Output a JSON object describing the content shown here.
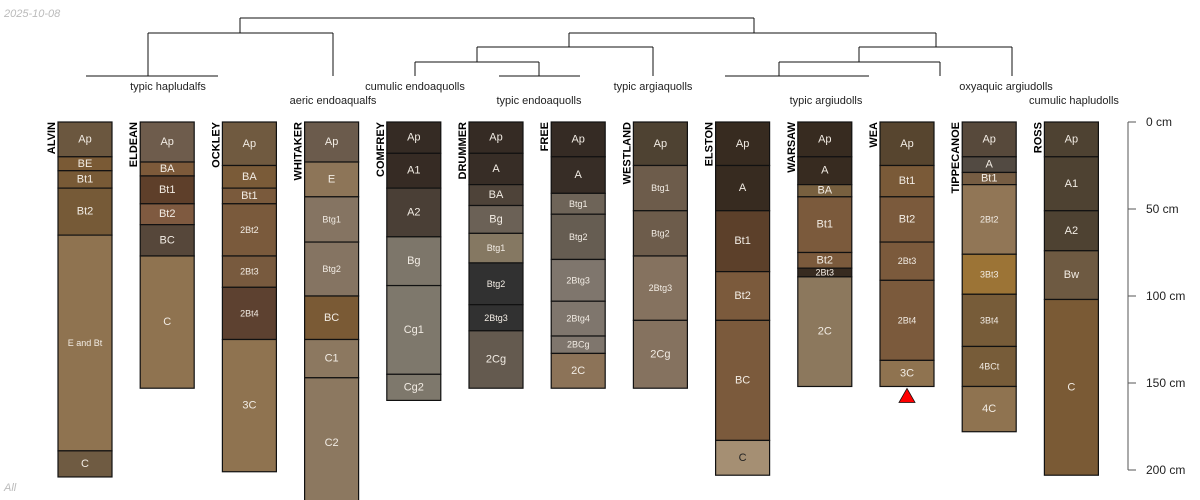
{
  "date": "2025-10-08",
  "footer": "All",
  "depth_axis": {
    "unit": "cm",
    "ticks": [
      0,
      50,
      100,
      150,
      200
    ],
    "tick_labels": [
      "0 cm",
      "50 cm",
      "100 cm",
      "150 cm",
      "200 cm"
    ]
  },
  "classifications": [
    "typic hapludalfs",
    "aeric endoaqualfs",
    "cumulic endoaquolls",
    "typic endoaquolls",
    "typic argiaquolls",
    "typic argiudolls",
    "oxyaquic argiudolls",
    "cumulic hapludolls"
  ],
  "marker": {
    "profile": "WEA",
    "symbol": "red-triangle",
    "color": "#ff0000"
  },
  "profiles": [
    {
      "name": "ALVIN",
      "horizons": [
        {
          "name": "Ap",
          "top": 0,
          "bottom": 20,
          "color": "#6b573f"
        },
        {
          "name": "BE",
          "top": 20,
          "bottom": 28,
          "color": "#7a5a35"
        },
        {
          "name": "Bt1",
          "top": 28,
          "bottom": 38,
          "color": "#785a36"
        },
        {
          "name": "Bt2",
          "top": 38,
          "bottom": 65,
          "color": "#765a37"
        },
        {
          "name": "E and Bt",
          "top": 65,
          "bottom": 189,
          "color": "#8f7350"
        },
        {
          "name": "C",
          "top": 189,
          "bottom": 204,
          "color": "#6f5b42"
        }
      ]
    },
    {
      "name": "ELDEAN",
      "horizons": [
        {
          "name": "Ap",
          "top": 0,
          "bottom": 23,
          "color": "#6e5c4c"
        },
        {
          "name": "BA",
          "top": 23,
          "bottom": 31,
          "color": "#7d5a3a"
        },
        {
          "name": "Bt1",
          "top": 31,
          "bottom": 47,
          "color": "#5e3f2a"
        },
        {
          "name": "Bt2",
          "top": 47,
          "bottom": 59,
          "color": "#7f5a40"
        },
        {
          "name": "BC",
          "top": 59,
          "bottom": 77,
          "color": "#56473a"
        },
        {
          "name": "C",
          "top": 77,
          "bottom": 153,
          "color": "#8f7350"
        }
      ]
    },
    {
      "name": "OCKLEY",
      "horizons": [
        {
          "name": "Ap",
          "top": 0,
          "bottom": 25,
          "color": "#705a40"
        },
        {
          "name": "BA",
          "top": 25,
          "bottom": 38,
          "color": "#7a5b38"
        },
        {
          "name": "Bt1",
          "top": 38,
          "bottom": 47,
          "color": "#7a5a3c"
        },
        {
          "name": "2Bt2",
          "top": 47,
          "bottom": 77,
          "color": "#7a5a3c"
        },
        {
          "name": "2Bt3",
          "top": 77,
          "bottom": 95,
          "color": "#785a3e"
        },
        {
          "name": "2Bt4",
          "top": 95,
          "bottom": 125,
          "color": "#5d4130"
        },
        {
          "name": "3C",
          "top": 125,
          "bottom": 201,
          "color": "#8f7350"
        }
      ]
    },
    {
      "name": "WHITAKER",
      "horizons": [
        {
          "name": "Ap",
          "top": 0,
          "bottom": 23,
          "color": "#6b5b4c"
        },
        {
          "name": "E",
          "top": 23,
          "bottom": 43,
          "color": "#8d7558"
        },
        {
          "name": "Btg1",
          "top": 43,
          "bottom": 69,
          "color": "#857462"
        },
        {
          "name": "Btg2",
          "top": 69,
          "bottom": 100,
          "color": "#857462"
        },
        {
          "name": "BC",
          "top": 100,
          "bottom": 125,
          "color": "#7a5a35"
        },
        {
          "name": "C1",
          "top": 125,
          "bottom": 147,
          "color": "#8c7860"
        },
        {
          "name": "C2",
          "top": 147,
          "bottom": 222,
          "color": "#8c7860"
        }
      ]
    },
    {
      "name": "COMFREY",
      "horizons": [
        {
          "name": "Ap",
          "top": 0,
          "bottom": 18,
          "color": "#352b24"
        },
        {
          "name": "A1",
          "top": 18,
          "bottom": 38,
          "color": "#362b24"
        },
        {
          "name": "A2",
          "top": 38,
          "bottom": 66,
          "color": "#4a3f36"
        },
        {
          "name": "Bg",
          "top": 66,
          "bottom": 94,
          "color": "#7d766a"
        },
        {
          "name": "Cg1",
          "top": 94,
          "bottom": 145,
          "color": "#7e786c"
        },
        {
          "name": "Cg2",
          "top": 145,
          "bottom": 160,
          "color": "#7e786c"
        }
      ]
    },
    {
      "name": "DRUMMER",
      "horizons": [
        {
          "name": "Ap",
          "top": 0,
          "bottom": 18,
          "color": "#352b24"
        },
        {
          "name": "A",
          "top": 18,
          "bottom": 36,
          "color": "#372d26"
        },
        {
          "name": "BA",
          "top": 36,
          "bottom": 48,
          "color": "#4e4339"
        },
        {
          "name": "Bg",
          "top": 48,
          "bottom": 64,
          "color": "#6b6156"
        },
        {
          "name": "Btg1",
          "top": 64,
          "bottom": 81,
          "color": "#857862"
        },
        {
          "name": "Btg2",
          "top": 81,
          "bottom": 105,
          "color": "#313131"
        },
        {
          "name": "2Btg3",
          "top": 105,
          "bottom": 120,
          "color": "#313131"
        },
        {
          "name": "2Cg",
          "top": 120,
          "bottom": 153,
          "color": "#645a4f"
        }
      ]
    },
    {
      "name": "FREE",
      "horizons": [
        {
          "name": "Ap",
          "top": 0,
          "bottom": 20,
          "color": "#352b24"
        },
        {
          "name": "A",
          "top": 20,
          "bottom": 41,
          "color": "#372d26"
        },
        {
          "name": "Btg1",
          "top": 41,
          "bottom": 53,
          "color": "#6e6458"
        },
        {
          "name": "Btg2",
          "top": 53,
          "bottom": 79,
          "color": "#665d52"
        },
        {
          "name": "2Btg3",
          "top": 79,
          "bottom": 103,
          "color": "#7f766d"
        },
        {
          "name": "2Btg4",
          "top": 103,
          "bottom": 123,
          "color": "#7f766d"
        },
        {
          "name": "2BCg",
          "top": 123,
          "bottom": 133,
          "color": "#7f766d"
        },
        {
          "name": "2C",
          "top": 133,
          "bottom": 153,
          "color": "#8c7358"
        }
      ]
    },
    {
      "name": "WESTLAND",
      "horizons": [
        {
          "name": "Ap",
          "top": 0,
          "bottom": 25,
          "color": "#4e4232"
        },
        {
          "name": "Btg1",
          "top": 25,
          "bottom": 51,
          "color": "#6d5c4b"
        },
        {
          "name": "Btg2",
          "top": 51,
          "bottom": 77,
          "color": "#6d5c4b"
        },
        {
          "name": "2Btg3",
          "top": 77,
          "bottom": 114,
          "color": "#85725f"
        },
        {
          "name": "2Cg",
          "top": 114,
          "bottom": 153,
          "color": "#85725f"
        }
      ]
    },
    {
      "name": "ELSTON",
      "horizons": [
        {
          "name": "Ap",
          "top": 0,
          "bottom": 25,
          "color": "#372b20"
        },
        {
          "name": "A",
          "top": 25,
          "bottom": 51,
          "color": "#372b20"
        },
        {
          "name": "Bt1",
          "top": 51,
          "bottom": 86,
          "color": "#5c402a"
        },
        {
          "name": "Bt2",
          "top": 86,
          "bottom": 114,
          "color": "#7b5a3c"
        },
        {
          "name": "BC",
          "top": 114,
          "bottom": 183,
          "color": "#7b5a3c"
        },
        {
          "name": "C",
          "top": 183,
          "bottom": 203,
          "color": "#a58f73",
          "text": "#222222"
        }
      ]
    },
    {
      "name": "WARSAW",
      "horizons": [
        {
          "name": "Ap",
          "top": 0,
          "bottom": 20,
          "color": "#372b20"
        },
        {
          "name": "A",
          "top": 20,
          "bottom": 36,
          "color": "#372b20"
        },
        {
          "name": "BA",
          "top": 36,
          "bottom": 43,
          "color": "#78603f"
        },
        {
          "name": "Bt1",
          "top": 43,
          "bottom": 75,
          "color": "#7b5a3c"
        },
        {
          "name": "Bt2",
          "top": 75,
          "bottom": 84,
          "color": "#7b5a3c"
        },
        {
          "name": "2Bt3",
          "top": 84,
          "bottom": 89,
          "color": "#372b20"
        },
        {
          "name": "2C",
          "top": 89,
          "bottom": 152,
          "color": "#8c785d"
        }
      ]
    },
    {
      "name": "WEA",
      "horizons": [
        {
          "name": "Ap",
          "top": 0,
          "bottom": 25,
          "color": "#57452f"
        },
        {
          "name": "Bt1",
          "top": 25,
          "bottom": 43,
          "color": "#7a5a38"
        },
        {
          "name": "Bt2",
          "top": 43,
          "bottom": 69,
          "color": "#7b5a3c"
        },
        {
          "name": "2Bt3",
          "top": 69,
          "bottom": 91,
          "color": "#7b5a3c"
        },
        {
          "name": "2Bt4",
          "top": 91,
          "bottom": 137,
          "color": "#7b5a3c"
        },
        {
          "name": "3C",
          "top": 137,
          "bottom": 152,
          "color": "#8f7350"
        }
      ]
    },
    {
      "name": "TIPPECANOE",
      "horizons": [
        {
          "name": "Ap",
          "top": 0,
          "bottom": 20,
          "color": "#57493b"
        },
        {
          "name": "A",
          "top": 20,
          "bottom": 29,
          "color": "#524a42"
        },
        {
          "name": "Bt1",
          "top": 29,
          "bottom": 36,
          "color": "#765d43"
        },
        {
          "name": "2Bt2",
          "top": 36,
          "bottom": 76,
          "color": "#917656"
        },
        {
          "name": "3Bt3",
          "top": 76,
          "bottom": 99,
          "color": "#9c7436"
        },
        {
          "name": "3Bt4",
          "top": 99,
          "bottom": 129,
          "color": "#775c39"
        },
        {
          "name": "4BCt",
          "top": 129,
          "bottom": 152,
          "color": "#775c39"
        },
        {
          "name": "4C",
          "top": 152,
          "bottom": 178,
          "color": "#8f7350"
        }
      ]
    },
    {
      "name": "ROSS",
      "horizons": [
        {
          "name": "Ap",
          "top": 0,
          "bottom": 20,
          "color": "#4e4232"
        },
        {
          "name": "A1",
          "top": 20,
          "bottom": 51,
          "color": "#4e4232"
        },
        {
          "name": "A2",
          "top": 51,
          "bottom": 74,
          "color": "#4e4232"
        },
        {
          "name": "Bw",
          "top": 74,
          "bottom": 102,
          "color": "#6e5a42"
        },
        {
          "name": "C",
          "top": 102,
          "bottom": 203,
          "color": "#7a5a35"
        }
      ]
    }
  ]
}
